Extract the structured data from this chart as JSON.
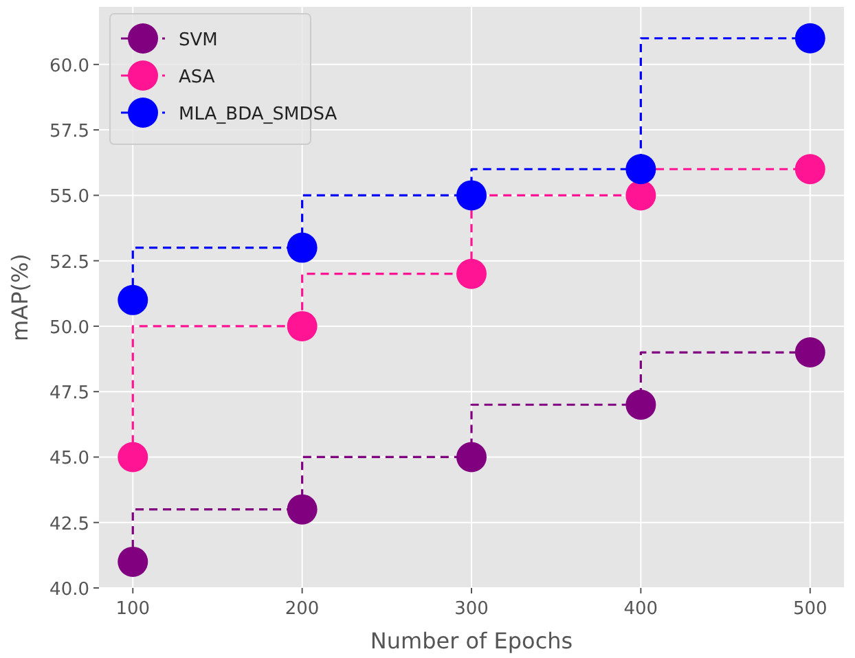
{
  "chart_data": {
    "type": "step",
    "xlabel": "Number of Epochs",
    "ylabel": "mAP(%)",
    "x": [
      100,
      200,
      300,
      400,
      500
    ],
    "series": [
      {
        "name": "SVM",
        "color": "#800080",
        "values": [
          41,
          43,
          45,
          47,
          49
        ]
      },
      {
        "name": "ASA",
        "color": "#ff1493",
        "values": [
          45,
          50,
          52,
          55,
          56
        ]
      },
      {
        "name": "MLA_BDA_SMDSA",
        "color": "#0000ff",
        "values": [
          51,
          53,
          55,
          56,
          61
        ]
      }
    ],
    "xlim": [
      80,
      520
    ],
    "xticks": [
      100,
      200,
      300,
      400,
      500
    ],
    "ylim": [
      40,
      62.2
    ],
    "yticks": [
      {
        "value": 40,
        "label": "40.0"
      },
      {
        "value": 42.5,
        "label": "42.5"
      },
      {
        "value": 45,
        "label": "45.0"
      },
      {
        "value": 47.5,
        "label": "47.5"
      },
      {
        "value": 50,
        "label": "50.0"
      },
      {
        "value": 52.5,
        "label": "52.5"
      },
      {
        "value": 55,
        "label": "55.0"
      },
      {
        "value": 57.5,
        "label": "57.5"
      },
      {
        "value": 60,
        "label": "60.0"
      }
    ],
    "grid": true,
    "legend": "top left",
    "marker": "circle",
    "line_style": "dashed"
  }
}
